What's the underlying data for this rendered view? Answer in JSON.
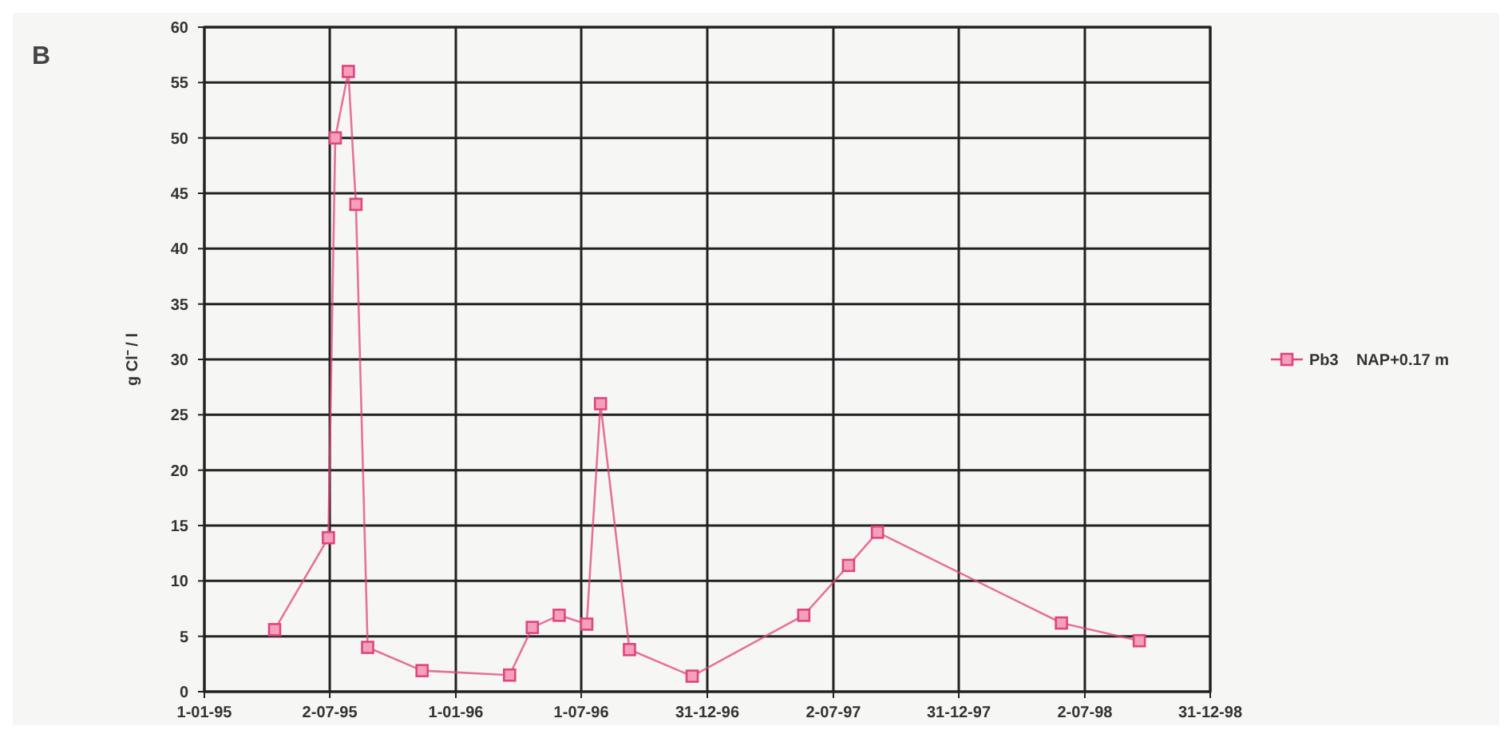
{
  "chart_data": {
    "type": "line",
    "title": "B",
    "ylabel": "g Cl⁻ / l",
    "xlim": [
      "1995-01-01",
      "1998-12-31"
    ],
    "xticks": [
      {
        "value": "1995-01-01",
        "label": "1-01-95"
      },
      {
        "value": "1995-07-02",
        "label": "2-07-95"
      },
      {
        "value": "1996-01-01",
        "label": "1-01-96"
      },
      {
        "value": "1996-07-01",
        "label": "1-07-96"
      },
      {
        "value": "1996-12-31",
        "label": "31-12-96"
      },
      {
        "value": "1997-07-02",
        "label": "2-07-97"
      },
      {
        "value": "1997-12-31",
        "label": "31-12-97"
      },
      {
        "value": "1998-07-02",
        "label": "2-07-98"
      },
      {
        "value": "1998-12-31",
        "label": "31-12-98"
      }
    ],
    "ylim": [
      0,
      60
    ],
    "yticks": [
      0,
      5,
      10,
      15,
      20,
      25,
      30,
      35,
      40,
      45,
      50,
      55,
      60
    ],
    "grid": true,
    "legend": "right",
    "marker": "square",
    "line_style": "solid",
    "x": [
      "1995-04-13",
      "1995-06-30",
      "1995-07-10",
      "1995-07-29",
      "1995-08-09",
      "1995-08-26",
      "1995-11-13",
      "1996-03-19",
      "1996-04-21",
      "1996-05-30",
      "1996-07-09",
      "1996-07-29",
      "1996-09-09",
      "1996-12-09",
      "1997-05-20",
      "1997-07-24",
      "1997-09-04",
      "1998-05-29",
      "1998-09-19"
    ],
    "series": [
      {
        "name": "Pb3    NAP+0.17 m",
        "color": "#e0457b",
        "values": [
          5.6,
          13.9,
          50,
          56,
          44,
          4,
          1.9,
          1.5,
          5.8,
          6.9,
          6.1,
          26,
          3.8,
          1.4,
          6.9,
          11.4,
          14.4,
          6.2,
          4.6
        ]
      }
    ]
  }
}
